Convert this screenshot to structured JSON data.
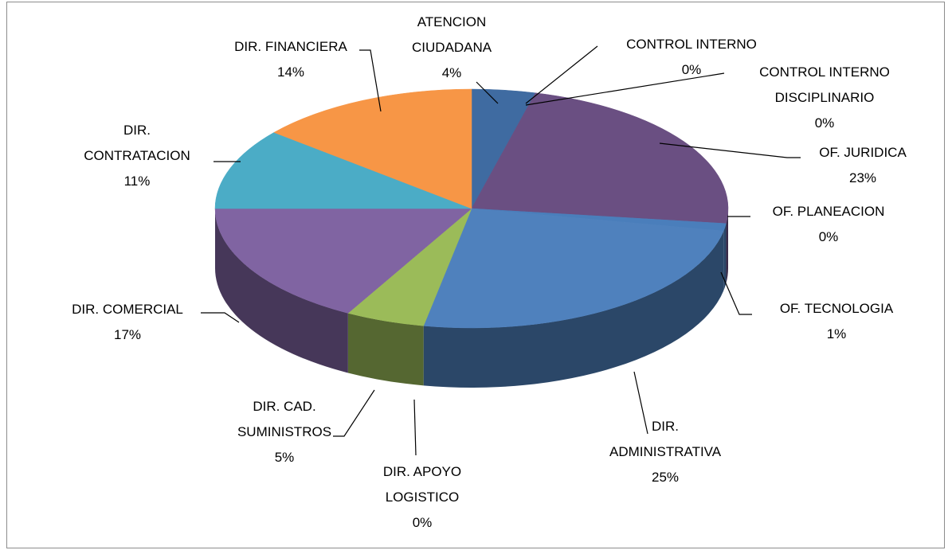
{
  "chart_data": {
    "type": "pie3d",
    "categories": [
      "ATENCION CIUDADANA",
      "CONTROL INTERNO",
      "CONTROL INTERNO DISCIPLINARIO",
      "OF. JURIDICA",
      "OF. PLANEACION",
      "OF. TECNOLOGIA",
      "DIR. ADMINISTRATIVA",
      "DIR. APOYO LOGISTICO",
      "DIR. CAD. SUMINISTROS",
      "DIR. COMERCIAL",
      "DIR. CONTRATACION",
      "DIR. FINANCIERA"
    ],
    "values": [
      4,
      0,
      0,
      23,
      0,
      1,
      25,
      0,
      5,
      17,
      11,
      14
    ],
    "value_labels": [
      "4%",
      "0%",
      "0%",
      "23%",
      "0%",
      "1%",
      "25%",
      "0%",
      "5%",
      "17%",
      "11%",
      "14%"
    ],
    "colors": [
      "#3f6ba1",
      "#c0504d",
      "#9bbb59",
      "#6a4f82",
      "#e8822e",
      "#4a7ebb",
      "#4f81bd",
      "#8bb04f",
      "#9bbb59",
      "#8064a2",
      "#4bacc6",
      "#f79646"
    ]
  }
}
